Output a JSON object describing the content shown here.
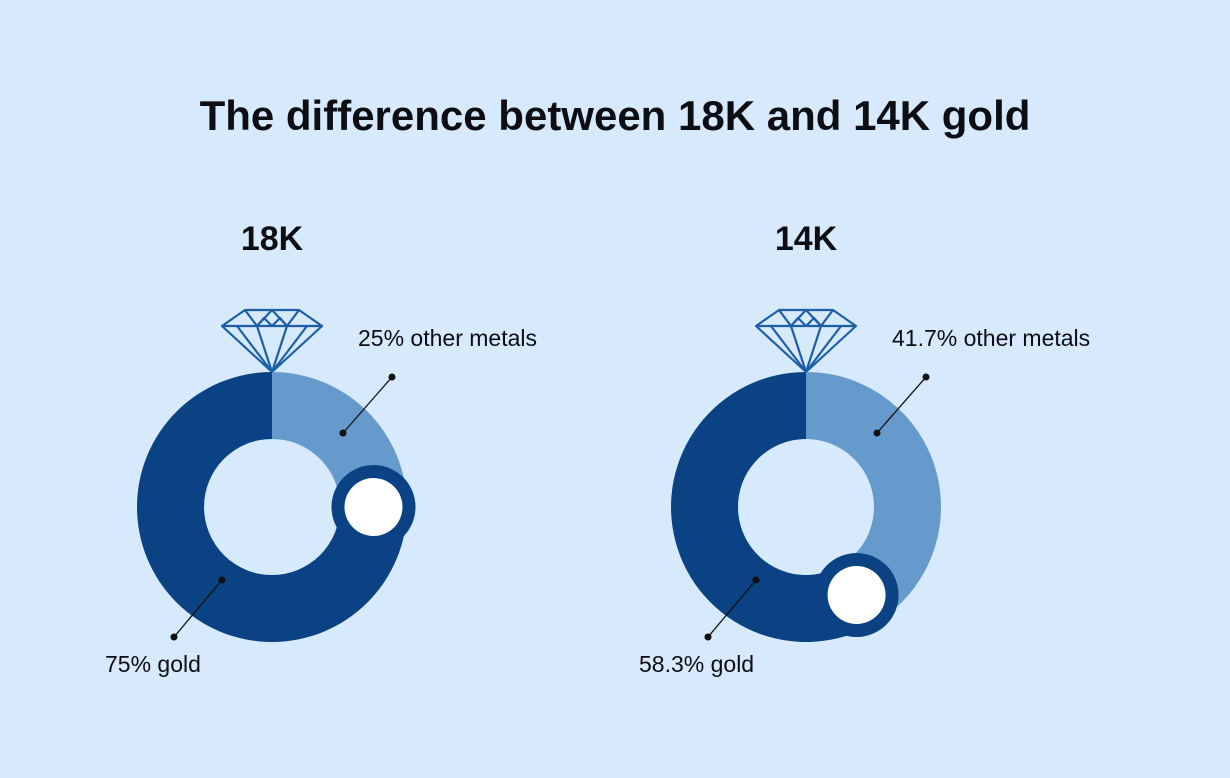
{
  "title": "The difference between 18K and 14K gold",
  "chart_data": [
    {
      "type": "donut",
      "title": "18K",
      "values": [
        25,
        75
      ],
      "value_labels": [
        "25% other metals",
        "75% gold"
      ],
      "colors": [
        "#6699cc",
        "#0a4283"
      ]
    },
    {
      "type": "donut",
      "title": "14K",
      "values": [
        41.7,
        58.3
      ],
      "value_labels": [
        "41.7% other metals",
        "58.3% gold"
      ],
      "colors": [
        "#6699cc",
        "#0a4283"
      ]
    }
  ]
}
